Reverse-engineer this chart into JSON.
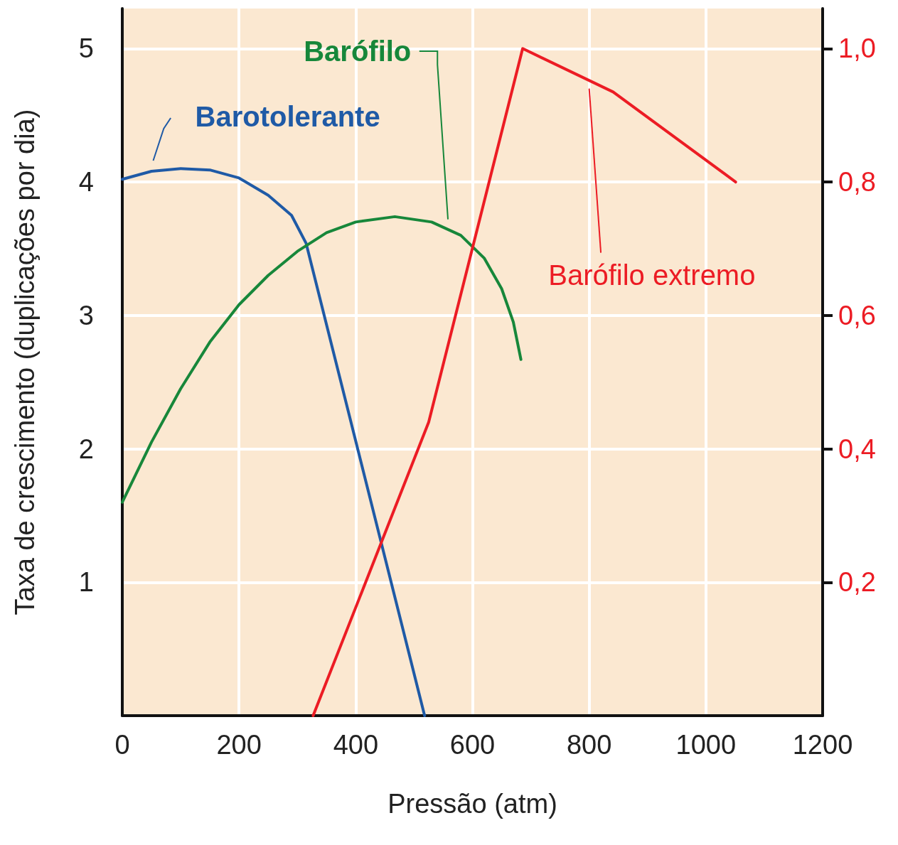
{
  "chart_data": {
    "type": "line",
    "xlabel": "Pressão (atm)",
    "ylabel": "Taxa de crescimento (duplicações por dia)",
    "xlim": [
      0,
      1200
    ],
    "xticks": [
      0,
      200,
      400,
      600,
      800,
      1000,
      1200
    ],
    "ylim": [
      0,
      5.3
    ],
    "yticks": [
      1,
      2,
      3,
      4,
      5
    ],
    "y2lim": [
      0,
      1.06
    ],
    "y2ticks": [
      {
        "value": 0.2,
        "label": "0,2"
      },
      {
        "value": 0.4,
        "label": "0,4"
      },
      {
        "value": 0.6,
        "label": "0,6"
      },
      {
        "value": 0.8,
        "label": "0,8"
      },
      {
        "value": 1.0,
        "label": "1,0"
      }
    ],
    "grid": true,
    "legend": false,
    "marker": "none",
    "line_style": "solid",
    "series": [
      {
        "name": "Barotolerante",
        "color": "#1f5aa6",
        "x": [
          0,
          50,
          100,
          150,
          200,
          250,
          290,
          315,
          518
        ],
        "values": [
          4.02,
          4.08,
          4.1,
          4.09,
          4.03,
          3.9,
          3.75,
          3.54,
          0
        ]
      },
      {
        "name": "Barófilo",
        "color": "#17873a",
        "x": [
          0,
          50,
          100,
          150,
          200,
          250,
          300,
          350,
          400,
          467,
          530,
          580,
          620,
          650,
          670,
          683
        ],
        "values": [
          1.6,
          2.05,
          2.45,
          2.8,
          3.08,
          3.3,
          3.48,
          3.62,
          3.7,
          3.74,
          3.7,
          3.6,
          3.43,
          3.2,
          2.95,
          2.67
        ]
      },
      {
        "name": "Barófilo extremo",
        "color": "#ec1c24",
        "axis": "y2",
        "x": [
          327,
          525,
          686,
          841,
          1051
        ],
        "values": [
          0,
          0.44,
          1.0,
          0.935,
          0.8
        ]
      }
    ]
  }
}
